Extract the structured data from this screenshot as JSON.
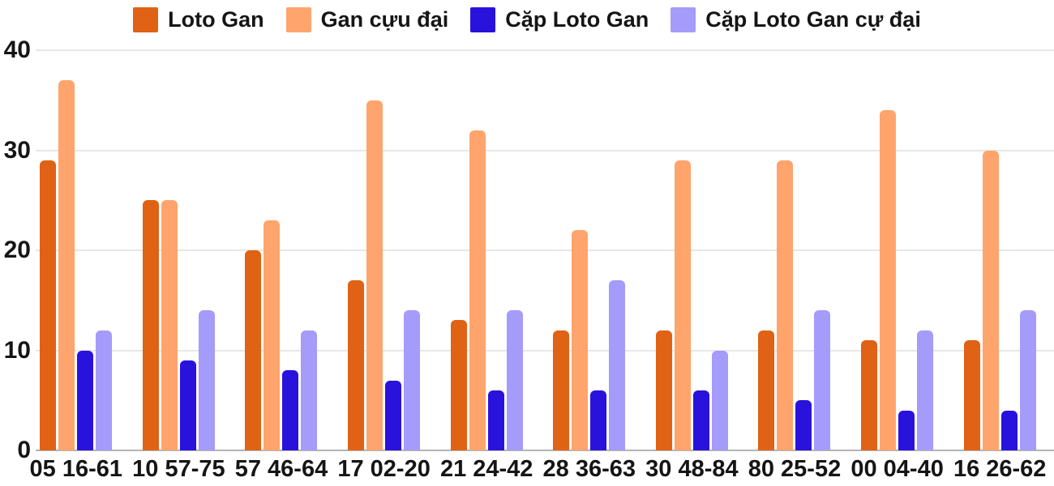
{
  "chart_data": {
    "type": "bar",
    "title": "",
    "xlabel": "",
    "ylabel": "",
    "categories": [
      "05 16-61",
      "10 57-75",
      "57 46-64",
      "17 02-20",
      "21 24-42",
      "28 36-63",
      "30 48-84",
      "80 25-52",
      "00 04-40",
      "16 26-62"
    ],
    "series": [
      {
        "name": "Loto Gan",
        "color": "#E06214",
        "values": [
          29,
          25,
          20,
          17,
          13,
          12,
          12,
          12,
          11,
          11
        ]
      },
      {
        "name": "Gan cựu đại",
        "color": "#FFA46C",
        "values": [
          37,
          25,
          23,
          35,
          32,
          22,
          29,
          29,
          34,
          30
        ]
      },
      {
        "name": "Cặp Loto Gan",
        "color": "#2A12DD",
        "values": [
          10,
          9,
          8,
          7,
          6,
          6,
          6,
          5,
          4,
          4
        ]
      },
      {
        "name": "Cặp Loto Gan cự đại",
        "color": "#A49BFA",
        "values": [
          12,
          14,
          12,
          14,
          14,
          17,
          10,
          14,
          12,
          14
        ]
      }
    ],
    "ylim": [
      0,
      40
    ],
    "yticks": [
      0,
      10,
      20,
      30,
      40
    ],
    "grid": true,
    "legend_position": "top",
    "colors": {
      "background": "#ffffff",
      "text": "#151515",
      "gridline": "#e7e7e7",
      "baseline": "#b4b4b4"
    }
  }
}
